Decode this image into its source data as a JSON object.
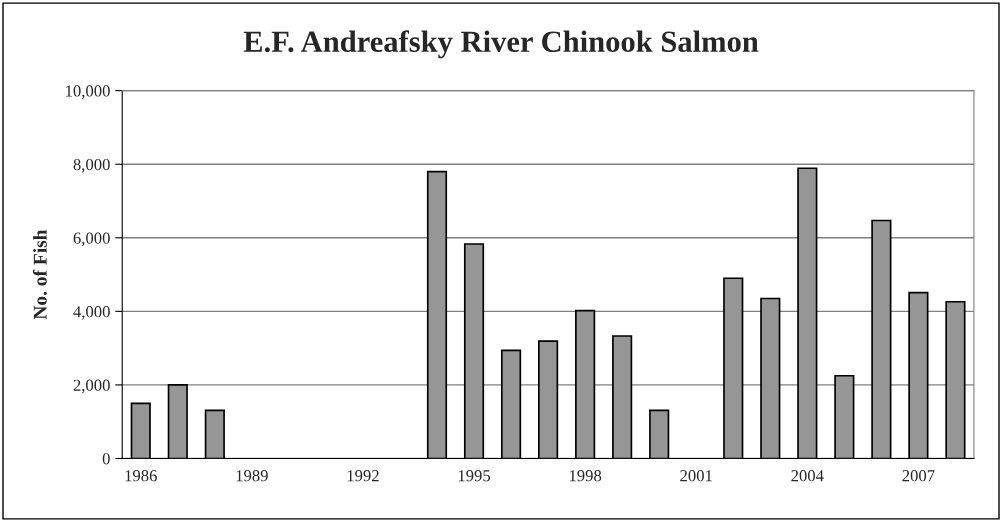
{
  "chart_data": {
    "type": "bar",
    "title": "E.F. Andreafsky River Chinook Salmon",
    "ylabel": "No. of Fish",
    "categories": [
      "1986",
      null,
      null,
      "1989",
      null,
      null,
      "1992",
      null,
      null,
      "1995",
      null,
      null,
      "1998",
      null,
      null,
      "2001",
      null,
      null,
      "2004",
      null,
      null,
      "2007",
      null
    ],
    "values": [
      1500,
      2000,
      1310,
      null,
      null,
      null,
      null,
      null,
      7800,
      5830,
      2940,
      3190,
      4020,
      3330,
      1310,
      null,
      4900,
      4350,
      7890,
      2250,
      6470,
      4510,
      4260
    ],
    "color": "#969696",
    "ylim": [
      0,
      10000
    ],
    "yticks": [
      {
        "value": 0,
        "label": "0"
      },
      {
        "value": 2000,
        "label": "2,000"
      },
      {
        "value": 4000,
        "label": "4,000"
      },
      {
        "value": 6000,
        "label": "6,000"
      },
      {
        "value": 8000,
        "label": "8,000"
      },
      {
        "value": 10000,
        "label": "10,000"
      }
    ],
    "grid": "y",
    "legend": false
  }
}
